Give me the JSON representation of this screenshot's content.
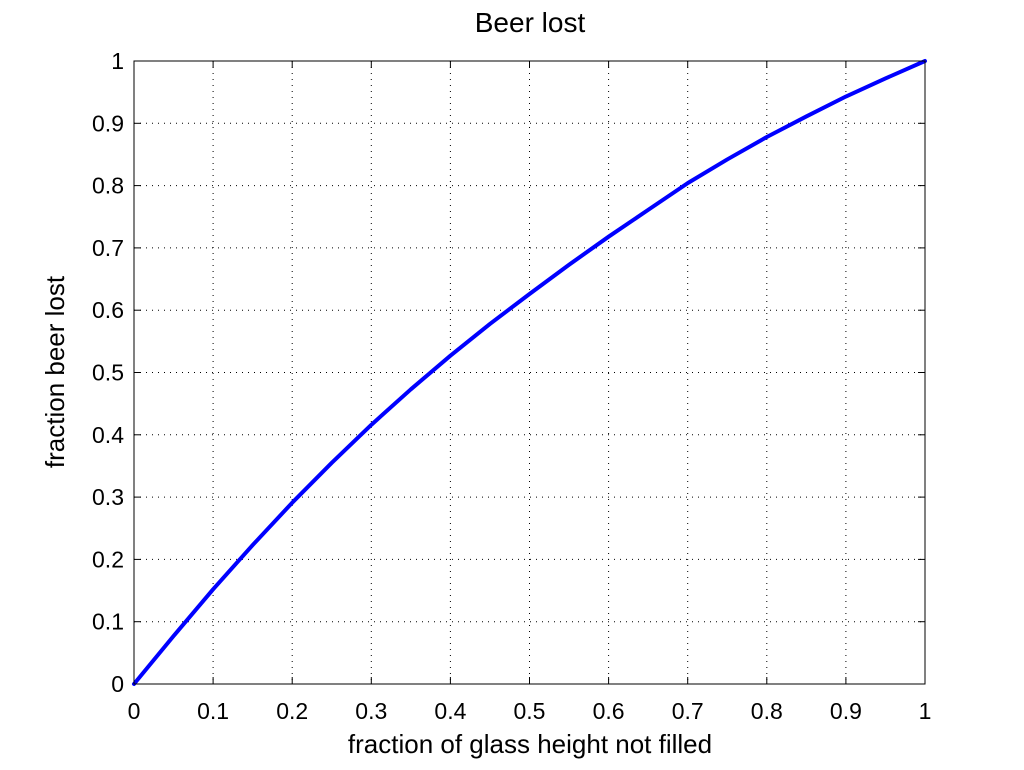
{
  "chart_data": {
    "type": "line",
    "title": "Beer lost",
    "xlabel": "fraction of glass height not filled",
    "ylabel": "fraction beer lost",
    "xlim": [
      0,
      1
    ],
    "ylim": [
      0,
      1
    ],
    "grid": true,
    "xticks": [
      "0",
      "0.1",
      "0.2",
      "0.3",
      "0.4",
      "0.5",
      "0.6",
      "0.7",
      "0.8",
      "0.9",
      "1"
    ],
    "yticks": [
      "0",
      "0.1",
      "0.2",
      "0.3",
      "0.4",
      "0.5",
      "0.6",
      "0.7",
      "0.8",
      "0.9",
      "1"
    ],
    "series": [
      {
        "color": "#0000ff",
        "x": [
          0,
          0.05,
          0.1,
          0.15,
          0.2,
          0.25,
          0.3,
          0.35,
          0.4,
          0.45,
          0.5,
          0.55,
          0.6,
          0.65,
          0.7,
          0.75,
          0.8,
          0.85,
          0.9,
          0.95,
          1.0
        ],
        "y": [
          0,
          0.077,
          0.152,
          0.223,
          0.291,
          0.355,
          0.416,
          0.473,
          0.527,
          0.578,
          0.626,
          0.673,
          0.718,
          0.761,
          0.804,
          0.842,
          0.878,
          0.911,
          0.943,
          0.972,
          1.0
        ]
      }
    ]
  }
}
